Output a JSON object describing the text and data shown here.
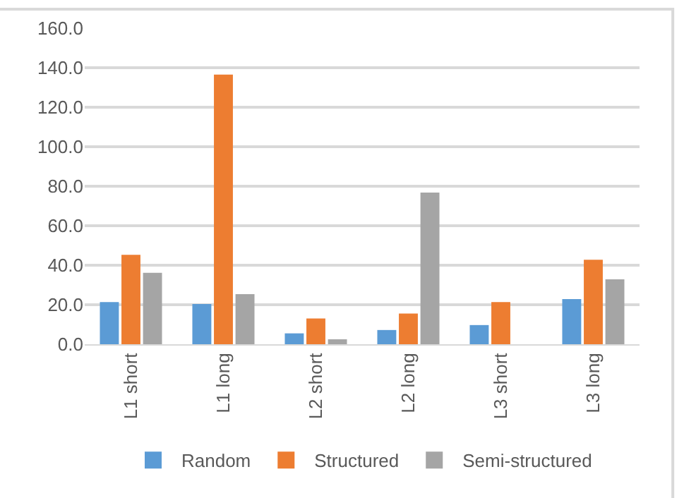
{
  "chart_data": {
    "type": "bar",
    "categories": [
      "L1 short",
      "L1 long",
      "L2 short",
      "L2 long",
      "L3 short",
      "L3 long"
    ],
    "series": [
      {
        "name": "Random",
        "color": "#5b9bd5",
        "values": [
          21.3,
          20.4,
          5.5,
          7.2,
          9.7,
          22.9
        ]
      },
      {
        "name": "Structured",
        "color": "#ed7d31",
        "values": [
          45.3,
          136.5,
          13.0,
          15.5,
          21.3,
          42.8
        ]
      },
      {
        "name": "Semi-structured",
        "color": "#a5a5a5",
        "values": [
          36.2,
          25.4,
          2.5,
          76.8,
          null,
          32.9
        ]
      }
    ],
    "ylim": [
      0,
      160
    ],
    "yticks": [
      {
        "value": 0,
        "label": "0.0"
      },
      {
        "value": 20,
        "label": "20.0"
      },
      {
        "value": 40,
        "label": "40.0"
      },
      {
        "value": 60,
        "label": "60.0"
      },
      {
        "value": 80,
        "label": "80.0"
      },
      {
        "value": 100,
        "label": "100.0"
      },
      {
        "value": 120,
        "label": "120.0"
      },
      {
        "value": 140,
        "label": "140.0"
      },
      {
        "value": 160,
        "label": "160.0"
      }
    ],
    "grid": "y",
    "legend": "bottom"
  }
}
